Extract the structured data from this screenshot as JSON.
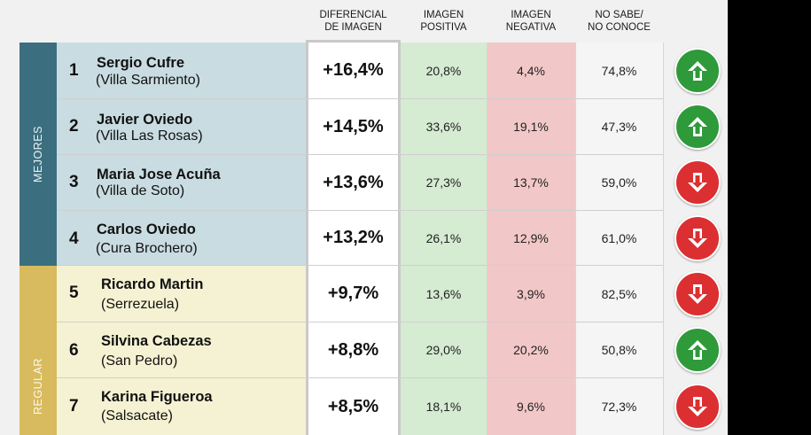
{
  "headers": {
    "diferencial": "DIFERENCIAL\nDE IMAGEN",
    "positiva": "IMAGEN\nPOSITIVA",
    "negativa": "IMAGEN\nNEGATIVA",
    "nosabe": "NO SABE/\nNO CONOCE"
  },
  "groups": {
    "mejores": "MEJORES",
    "regular": "REGULAR"
  },
  "colors": {
    "mejores": "#3b6f80",
    "regular": "#d8bb5e",
    "up": "#2e9a3a",
    "down": "#dc2f31"
  },
  "rows": [
    {
      "rank": "1",
      "name": "Sergio Cufre",
      "town": "(Villa Sarmiento)",
      "diff": "+16,4%",
      "pos": "20,8%",
      "neg": "4,4%",
      "ns": "74,8%",
      "trend": "up-arrow-icon"
    },
    {
      "rank": "2",
      "name": "Javier Oviedo",
      "town": "(Villa Las Rosas)",
      "diff": "+14,5%",
      "pos": "33,6%",
      "neg": "19,1%",
      "ns": "47,3%",
      "trend": "up-arrow-icon"
    },
    {
      "rank": "3",
      "name": "Maria Jose Acuña",
      "town": "(Villa de Soto)",
      "diff": "+13,6%",
      "pos": "27,3%",
      "neg": "13,7%",
      "ns": "59,0%",
      "trend": "down-arrow-icon"
    },
    {
      "rank": "4",
      "name": "Carlos Oviedo",
      "town": "(Cura Brochero)",
      "diff": "+13,2%",
      "pos": "26,1%",
      "neg": "12,9%",
      "ns": "61,0%",
      "trend": "down-arrow-icon"
    },
    {
      "rank": "5",
      "name": "Ricardo Martin",
      "town": "(Serrezuela)",
      "diff": "+9,7%",
      "pos": "13,6%",
      "neg": "3,9%",
      "ns": "82,5%",
      "trend": "down-arrow-icon"
    },
    {
      "rank": "6",
      "name": "Silvina Cabezas",
      "town": "(San Pedro)",
      "diff": "+8,8%",
      "pos": "29,0%",
      "neg": "20,2%",
      "ns": "50,8%",
      "trend": "up-arrow-icon"
    },
    {
      "rank": "7",
      "name": "Karina Figueroa",
      "town": "(Salsacate)",
      "diff": "+8,5%",
      "pos": "18,1%",
      "neg": "9,6%",
      "ns": "72,3%",
      "trend": "down-arrow-icon"
    }
  ]
}
